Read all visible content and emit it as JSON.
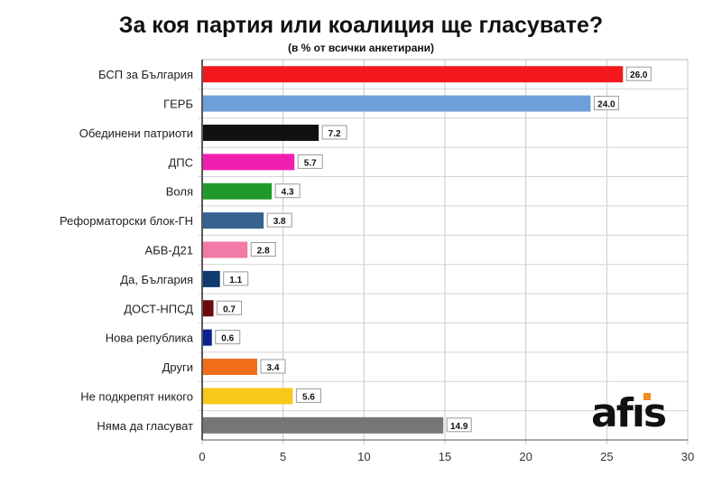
{
  "chart_data": {
    "type": "bar",
    "orientation": "horizontal",
    "title": "За коя партия или коалиция ще гласувате?",
    "subtitle": "(в % от всички анкетирани)",
    "categories": [
      "БСП за България",
      "ГЕРБ",
      "Обединени патриоти",
      "ДПС",
      "Воля",
      "Реформаторски блок-ГН",
      "АБВ-Д21",
      "Да, България",
      "ДОСТ-НПСД",
      "Нова република",
      "Други",
      "Не подкрепят никого",
      "Няма да гласуват"
    ],
    "values": [
      26.0,
      24.0,
      7.2,
      5.7,
      4.3,
      3.8,
      2.8,
      1.1,
      0.7,
      0.6,
      3.4,
      5.6,
      14.9
    ],
    "colors": [
      "#f2181c",
      "#6f9fd8",
      "#111111",
      "#f01fb0",
      "#1f9a2a",
      "#35628f",
      "#f27aa6",
      "#0f3a6e",
      "#6a0a0a",
      "#0b2390",
      "#f26d1a",
      "#f7c81a",
      "#767676"
    ],
    "xlim": [
      0,
      30
    ],
    "xticks": [
      0,
      5,
      10,
      15,
      20,
      25,
      30
    ],
    "grid": true,
    "legend": "none"
  },
  "logo": "afis"
}
